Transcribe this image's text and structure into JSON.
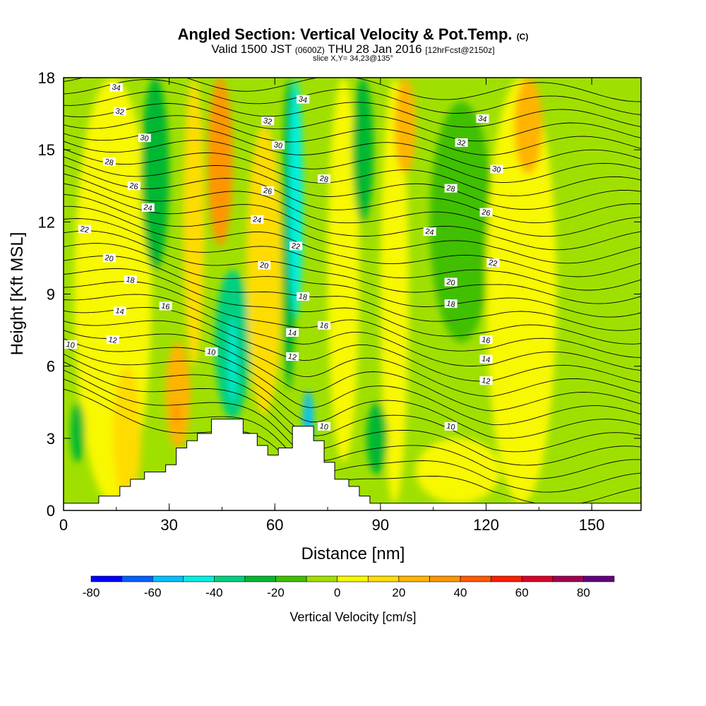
{
  "title": {
    "main": "Angled Section: Vertical Velocity & Pot.Temp.",
    "main_tag": "(C)",
    "valid": "Valid 1500 JST",
    "valid_utc": "(0600Z)",
    "valid_date": "THU 28 Jan 2016",
    "fcst": "[12hrFcst@2150z]",
    "slice": "slice X,Y= 34,23@135°"
  },
  "chart_data": {
    "type": "heatmap",
    "title": "Angled Section: Vertical Velocity & Pot.Temp.",
    "xlabel": "Distance [nm]",
    "ylabel": "Height [Kft MSL]",
    "xlim": [
      0,
      164
    ],
    "ylim": [
      0,
      18
    ],
    "xticks": [
      "0",
      "30",
      "60",
      "90",
      "120",
      "150"
    ],
    "xtick_values": [
      0,
      30,
      60,
      90,
      120,
      150
    ],
    "yticks": [
      "0",
      "3",
      "6",
      "9",
      "12",
      "15",
      "18"
    ],
    "ytick_values": [
      0,
      3,
      6,
      9,
      12,
      15,
      18
    ],
    "colorbar": {
      "label": "Vertical Velocity [cm/s]",
      "bounds": [
        -80,
        -70,
        -60,
        -50,
        -40,
        -30,
        -20,
        -10,
        0,
        10,
        20,
        30,
        40,
        50,
        60,
        70,
        80,
        90
      ],
      "colors": [
        "#0000ff",
        "#0060ff",
        "#00c0ff",
        "#00f0e0",
        "#00d080",
        "#00b830",
        "#40c000",
        "#a0e000",
        "#f8f800",
        "#ffdc00",
        "#ffb400",
        "#ff9600",
        "#ff5a00",
        "#ff1e00",
        "#dc0028",
        "#a00050",
        "#640080"
      ],
      "tick_labels": [
        "-80",
        "-60",
        "-40",
        "-20",
        "0",
        "20",
        "40",
        "60",
        "80"
      ],
      "tick_values": [
        -80,
        -60,
        -40,
        -20,
        0,
        20,
        40,
        60,
        80
      ]
    },
    "terrain": [
      [
        0,
        0.3
      ],
      [
        10,
        0.3
      ],
      [
        10,
        0.6
      ],
      [
        16,
        0.6
      ],
      [
        16,
        1.0
      ],
      [
        19,
        1.0
      ],
      [
        19,
        1.3
      ],
      [
        23,
        1.3
      ],
      [
        23,
        1.6
      ],
      [
        29,
        1.6
      ],
      [
        29,
        1.9
      ],
      [
        32,
        1.9
      ],
      [
        32,
        2.6
      ],
      [
        35,
        2.6
      ],
      [
        35,
        2.9
      ],
      [
        38,
        2.9
      ],
      [
        38,
        3.2
      ],
      [
        42,
        3.2
      ],
      [
        42,
        3.8
      ],
      [
        51,
        3.8
      ],
      [
        51,
        3.2
      ],
      [
        55,
        3.2
      ],
      [
        55,
        2.7
      ],
      [
        58,
        2.7
      ],
      [
        58,
        2.3
      ],
      [
        61,
        2.3
      ],
      [
        61,
        2.6
      ],
      [
        65,
        2.6
      ],
      [
        65,
        3.5
      ],
      [
        71,
        3.5
      ],
      [
        71,
        2.9
      ],
      [
        74,
        2.9
      ],
      [
        74,
        2.0
      ],
      [
        77,
        2.0
      ],
      [
        77,
        1.3
      ],
      [
        81,
        1.3
      ],
      [
        81,
        1.0
      ],
      [
        84,
        1.0
      ],
      [
        84,
        0.6
      ],
      [
        87,
        0.6
      ],
      [
        87,
        0.3
      ],
      [
        164,
        0.3
      ]
    ],
    "velocity_features": [
      {
        "x": [
          3,
          25
        ],
        "h": [
          0.3,
          18
        ],
        "value": 5
      },
      {
        "x": [
          14,
          22
        ],
        "h": [
          0.3,
          6
        ],
        "value": 15
      },
      {
        "x": [
          29,
          36
        ],
        "h": [
          2.6,
          7
        ],
        "value": 25
      },
      {
        "x": [
          31,
          33
        ],
        "h": [
          3.5,
          4.5
        ],
        "value": 35
      },
      {
        "x": [
          22,
          30
        ],
        "h": [
          10,
          18
        ],
        "value": -25
      },
      {
        "x": [
          34,
          40
        ],
        "h": [
          6,
          18
        ],
        "value": 15
      },
      {
        "x": [
          41,
          48
        ],
        "h": [
          11,
          18
        ],
        "value": 35
      },
      {
        "x": [
          43,
          53
        ],
        "h": [
          3.8,
          10
        ],
        "value": -35
      },
      {
        "x": [
          47,
          49
        ],
        "h": [
          4.5,
          8
        ],
        "value": -45
      },
      {
        "x": [
          52,
          62
        ],
        "h": [
          4,
          16
        ],
        "value": 15
      },
      {
        "x": [
          62,
          66
        ],
        "h": [
          5,
          18
        ],
        "value": -25
      },
      {
        "x": [
          64,
          68
        ],
        "h": [
          8,
          18
        ],
        "value": -45
      },
      {
        "x": [
          68,
          71
        ],
        "h": [
          2.5,
          5
        ],
        "value": -55
      },
      {
        "x": [
          75,
          84
        ],
        "h": [
          2,
          18
        ],
        "value": 5
      },
      {
        "x": [
          82,
          88
        ],
        "h": [
          12,
          18
        ],
        "value": -25
      },
      {
        "x": [
          90,
          98
        ],
        "h": [
          0.3,
          18
        ],
        "value": 5
      },
      {
        "x": [
          94,
          100
        ],
        "h": [
          14,
          18
        ],
        "value": 25
      },
      {
        "x": [
          86,
          92
        ],
        "h": [
          1.5,
          4.5
        ],
        "value": -25
      },
      {
        "x": [
          104,
          122
        ],
        "h": [
          7,
          17
        ],
        "value": -15
      },
      {
        "x": [
          120,
          140
        ],
        "h": [
          0.3,
          18
        ],
        "value": 5
      },
      {
        "x": [
          128,
          136
        ],
        "h": [
          14,
          18
        ],
        "value": 25
      },
      {
        "x": [
          100,
          124
        ],
        "h": [
          0.3,
          3
        ],
        "value": 5
      },
      {
        "x": [
          2,
          6
        ],
        "h": [
          2,
          4.5
        ],
        "value": -25
      }
    ],
    "contours": {
      "variable": "Potential Temperature [C]",
      "levels": [
        10,
        12,
        14,
        16,
        18,
        20,
        22,
        24,
        26,
        28,
        30,
        32,
        34
      ],
      "labels": [
        [
          2,
          6.9,
          "10"
        ],
        [
          14,
          7.1,
          "12"
        ],
        [
          16,
          8.3,
          "14"
        ],
        [
          29,
          8.5,
          "16"
        ],
        [
          19,
          9.6,
          "18"
        ],
        [
          13,
          10.5,
          "20"
        ],
        [
          6,
          11.7,
          "22"
        ],
        [
          24,
          12.6,
          "24"
        ],
        [
          20,
          13.5,
          "26"
        ],
        [
          13,
          14.5,
          "28"
        ],
        [
          23,
          15.5,
          "30"
        ],
        [
          16,
          16.6,
          "32"
        ],
        [
          15,
          17.6,
          "34"
        ],
        [
          42,
          6.6,
          "10"
        ],
        [
          65,
          6.4,
          "12"
        ],
        [
          65,
          7.4,
          "14"
        ],
        [
          74,
          7.7,
          "16"
        ],
        [
          68,
          8.9,
          "18"
        ],
        [
          57,
          10.2,
          "20"
        ],
        [
          66,
          11.0,
          "22"
        ],
        [
          55,
          12.1,
          "24"
        ],
        [
          58,
          13.3,
          "26"
        ],
        [
          74,
          13.8,
          "28"
        ],
        [
          61,
          15.2,
          "30"
        ],
        [
          58,
          16.2,
          "32"
        ],
        [
          68,
          17.1,
          "34"
        ],
        [
          74,
          3.5,
          "10"
        ],
        [
          120,
          5.4,
          "12"
        ],
        [
          120,
          6.3,
          "14"
        ],
        [
          120,
          7.1,
          "16"
        ],
        [
          110,
          8.6,
          "18"
        ],
        [
          110,
          9.5,
          "20"
        ],
        [
          122,
          10.3,
          "22"
        ],
        [
          104,
          11.6,
          "24"
        ],
        [
          120,
          12.4,
          "26"
        ],
        [
          110,
          13.4,
          "28"
        ],
        [
          123,
          14.2,
          "30"
        ],
        [
          113,
          15.3,
          "32"
        ],
        [
          119,
          16.3,
          "34"
        ],
        [
          110,
          3.5,
          "10"
        ]
      ]
    }
  }
}
